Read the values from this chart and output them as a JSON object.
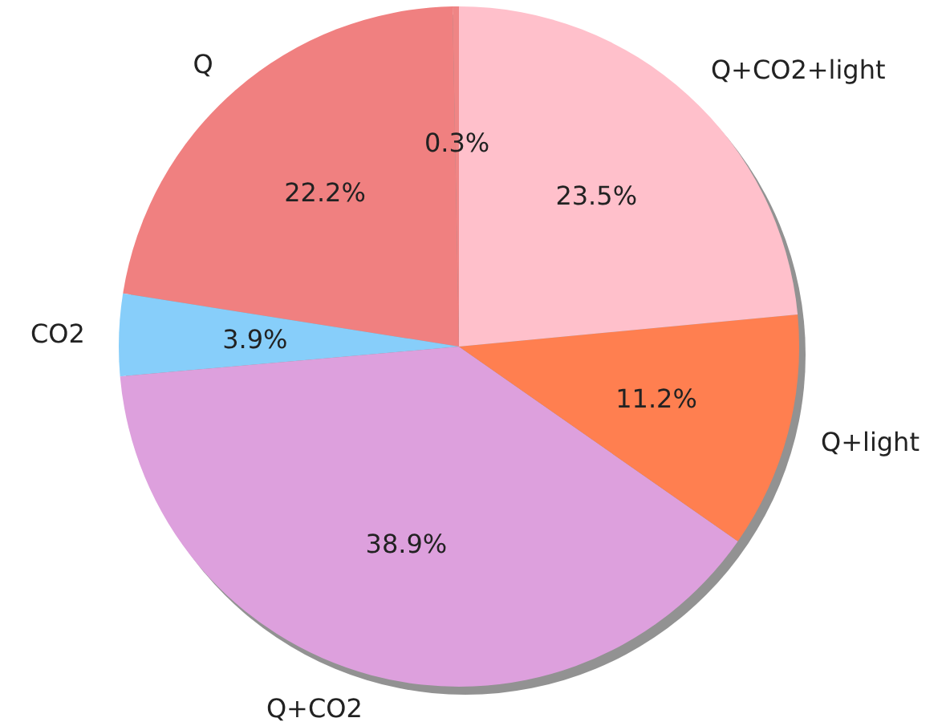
{
  "chart_data": {
    "type": "pie",
    "categories": [
      null,
      "Q",
      "CO2",
      "Q+CO2",
      "Q+light",
      "Q+CO2+light"
    ],
    "values": [
      0.3,
      22.2,
      3.9,
      38.9,
      11.2,
      23.5
    ],
    "colors": [
      "#ef8585",
      "#f08080",
      "#87cefa",
      "#dda0dd",
      "#ff7f50",
      "#ffc0cb"
    ],
    "value_labels": [
      "0.3%",
      "22.2%",
      "3.9%",
      "38.9%",
      "11.2%",
      "23.5%"
    ]
  }
}
